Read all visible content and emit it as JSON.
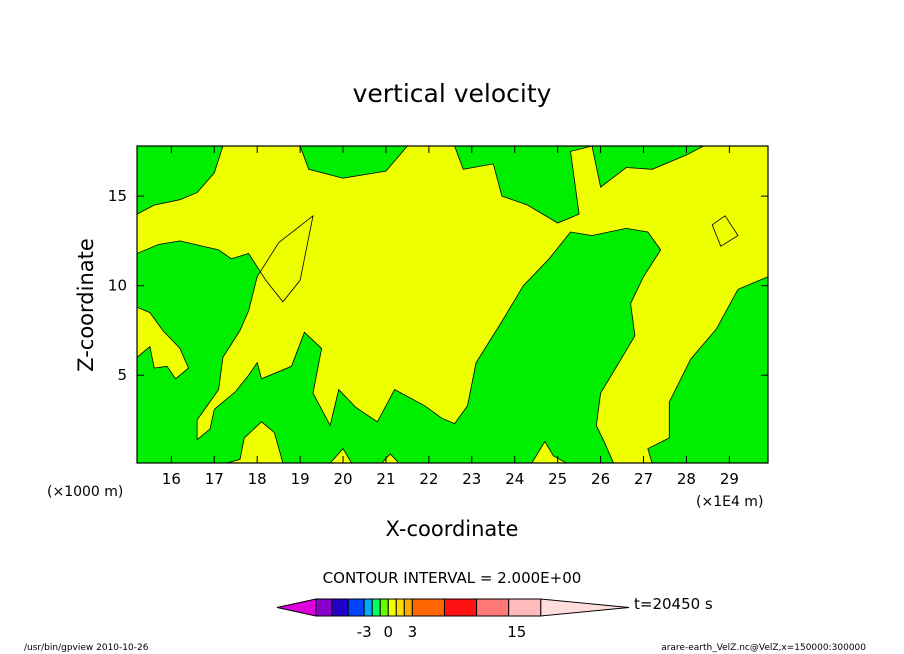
{
  "chart_data": {
    "type": "heatmap",
    "title": "vertical velocity",
    "xlabel": "X-coordinate",
    "ylabel": "Z-coordinate",
    "x_unit_left": "(×1000 m)",
    "x_unit_right": "(×1E4 m)",
    "xlim": [
      15.2,
      29.9
    ],
    "ylim": [
      0.1,
      17.8
    ],
    "x_ticks": [
      "16",
      "17",
      "18",
      "19",
      "20",
      "21",
      "22",
      "23",
      "24",
      "25",
      "26",
      "27",
      "28",
      "29"
    ],
    "y_ticks": [
      "5",
      "10",
      "15"
    ],
    "contour_interval_text": "CONTOUR INTERVAL = 2.000E+00",
    "colorbar": {
      "colors": [
        "#dd00dd",
        "#8800cc",
        "#2200cc",
        "#0044ff",
        "#00aaff",
        "#00ff66",
        "#66ff00",
        "#eeff00",
        "#ffdd00",
        "#ffaa00",
        "#ff6600",
        "#ff1111",
        "#ff7777",
        "#ffbbbb",
        "#ffdddd"
      ],
      "widths": [
        1,
        1,
        1,
        1,
        0.5,
        0.5,
        0.5,
        0.5,
        0.5,
        0.5,
        2,
        2,
        2,
        2,
        2
      ],
      "tick_labels": [
        {
          "label": "-3",
          "pos": 3
        },
        {
          "label": "0",
          "pos": 4.5
        },
        {
          "label": "3",
          "pos": 6
        },
        {
          "label": "15",
          "pos": 12.5
        }
      ],
      "time_text": "t=20450 s"
    },
    "footer_left": "/usr/bin/gpview   2010-10-26",
    "footer_right": "arare-earth_VelZ.nc@VelZ,x=150000:300000",
    "colors": {
      "positive": "#eeff00",
      "negative": "#00ee00"
    },
    "positive_regions": [
      [
        [
          15.2,
          14.0
        ],
        [
          15.6,
          14.5
        ],
        [
          16.2,
          14.8
        ],
        [
          16.6,
          15.2
        ],
        [
          17.0,
          16.3
        ],
        [
          17.2,
          17.8
        ],
        [
          19.0,
          17.8
        ],
        [
          19.2,
          16.5
        ],
        [
          20.0,
          16.0
        ],
        [
          21.0,
          16.4
        ],
        [
          21.5,
          17.8
        ],
        [
          22.6,
          17.8
        ],
        [
          22.8,
          16.5
        ],
        [
          23.5,
          16.8
        ],
        [
          23.7,
          15.0
        ],
        [
          24.3,
          14.5
        ],
        [
          25.0,
          13.5
        ],
        [
          25.5,
          14.0
        ],
        [
          25.3,
          17.5
        ],
        [
          25.8,
          17.8
        ],
        [
          26.0,
          15.5
        ],
        [
          26.6,
          16.6
        ],
        [
          27.2,
          16.5
        ],
        [
          28.0,
          17.3
        ],
        [
          28.4,
          17.8
        ],
        [
          29.9,
          17.8
        ],
        [
          29.9,
          10.5
        ],
        [
          29.2,
          9.8
        ],
        [
          28.7,
          7.6
        ],
        [
          28.1,
          5.9
        ],
        [
          27.6,
          3.5
        ],
        [
          27.6,
          1.5
        ],
        [
          27.1,
          0.9
        ],
        [
          27.2,
          0.1
        ],
        [
          26.3,
          0.1
        ],
        [
          26.1,
          1.2
        ],
        [
          25.9,
          2.2
        ],
        [
          26.0,
          4.0
        ],
        [
          26.5,
          6.0
        ],
        [
          26.8,
          7.2
        ],
        [
          26.7,
          9.0
        ],
        [
          27.0,
          10.5
        ],
        [
          27.4,
          12.0
        ],
        [
          27.1,
          13.0
        ],
        [
          26.6,
          13.2
        ],
        [
          25.8,
          12.8
        ],
        [
          25.3,
          13.0
        ],
        [
          24.8,
          11.5
        ],
        [
          24.2,
          10.0
        ],
        [
          23.7,
          8.0
        ],
        [
          23.1,
          5.7
        ],
        [
          22.9,
          3.3
        ],
        [
          22.6,
          2.3
        ],
        [
          22.3,
          2.6
        ],
        [
          21.9,
          3.3
        ],
        [
          21.2,
          4.2
        ],
        [
          20.8,
          2.4
        ],
        [
          20.3,
          3.2
        ],
        [
          19.9,
          4.2
        ],
        [
          19.7,
          2.2
        ],
        [
          19.3,
          4.0
        ],
        [
          19.5,
          6.5
        ],
        [
          19.1,
          7.4
        ],
        [
          18.8,
          5.5
        ],
        [
          18.1,
          4.8
        ],
        [
          18.0,
          5.7
        ],
        [
          17.8,
          5.0
        ],
        [
          17.5,
          4.1
        ],
        [
          17.0,
          3.1
        ],
        [
          16.9,
          2.0
        ],
        [
          16.6,
          1.4
        ],
        [
          16.6,
          2.5
        ],
        [
          17.1,
          4.2
        ],
        [
          17.2,
          6.0
        ],
        [
          17.6,
          7.5
        ],
        [
          17.8,
          8.6
        ],
        [
          18.0,
          10.5
        ],
        [
          18.5,
          12.4
        ],
        [
          19.3,
          13.9
        ],
        [
          19.2,
          12.7
        ],
        [
          19.0,
          10.3
        ],
        [
          18.6,
          9.1
        ],
        [
          18.2,
          10.3
        ],
        [
          17.8,
          11.8
        ],
        [
          17.4,
          11.5
        ],
        [
          17.1,
          12.0
        ],
        [
          16.2,
          12.5
        ],
        [
          15.7,
          12.3
        ],
        [
          15.2,
          11.8
        ]
      ],
      [
        [
          15.2,
          8.8
        ],
        [
          15.5,
          8.5
        ],
        [
          15.8,
          7.5
        ],
        [
          16.2,
          6.5
        ],
        [
          16.4,
          5.4
        ],
        [
          16.1,
          4.8
        ],
        [
          15.9,
          5.5
        ],
        [
          15.6,
          5.4
        ],
        [
          15.5,
          6.6
        ],
        [
          15.2,
          6.0
        ]
      ],
      [
        [
          17.3,
          0.1
        ],
        [
          17.6,
          0.3
        ],
        [
          17.7,
          1.5
        ],
        [
          18.1,
          2.4
        ],
        [
          18.4,
          1.8
        ],
        [
          18.6,
          0.1
        ]
      ],
      [
        [
          19.7,
          0.1
        ],
        [
          20.0,
          0.9
        ],
        [
          20.2,
          0.1
        ]
      ],
      [
        [
          20.9,
          0.1
        ],
        [
          21.1,
          0.6
        ],
        [
          21.3,
          0.1
        ]
      ],
      [
        [
          24.4,
          0.1
        ],
        [
          24.7,
          1.3
        ],
        [
          24.9,
          0.5
        ],
        [
          25.2,
          0.1
        ]
      ],
      [
        [
          28.6,
          13.4
        ],
        [
          28.9,
          13.9
        ],
        [
          29.2,
          12.8
        ],
        [
          28.8,
          12.2
        ]
      ]
    ]
  }
}
